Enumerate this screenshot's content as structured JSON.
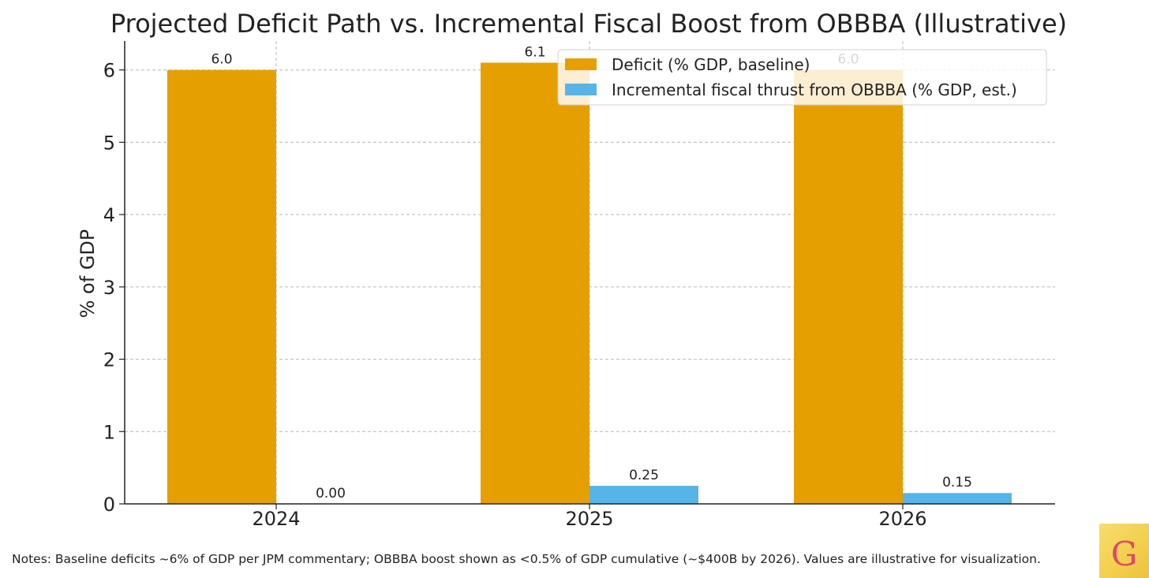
{
  "chart_data": {
    "type": "bar",
    "title": "Projected Deficit Path vs. Incremental Fiscal Boost from OBBBA (Illustrative)",
    "ylabel": "% of GDP",
    "xlabel": "",
    "categories": [
      "2024",
      "2025",
      "2026"
    ],
    "ylim": [
      0,
      6.4
    ],
    "yticks": [
      "0",
      "1",
      "2",
      "3",
      "4",
      "5",
      "6"
    ],
    "grid": true,
    "legend_position": "top-right",
    "series": [
      {
        "name": "Deficit (% GDP, baseline)",
        "values": [
          6.0,
          6.1,
          6.0
        ],
        "labels": [
          "6.0",
          "6.1",
          "6.0"
        ],
        "color": "#E69F00"
      },
      {
        "name": "Incremental fiscal thrust from OBBBA (% GDP, est.)",
        "values": [
          0.0,
          0.25,
          0.15
        ],
        "labels": [
          "0.00",
          "0.25",
          "0.15"
        ],
        "color": "#56B4E9"
      }
    ]
  },
  "notes": "Notes: Baseline deficits ~6% of GDP per JPM commentary; OBBBA boost shown as <0.5% of GDP cumulative (~$400B by 2026). Values are illustrative for visualization.",
  "logo": {
    "letter": "G",
    "icon": "g-logo-icon"
  }
}
